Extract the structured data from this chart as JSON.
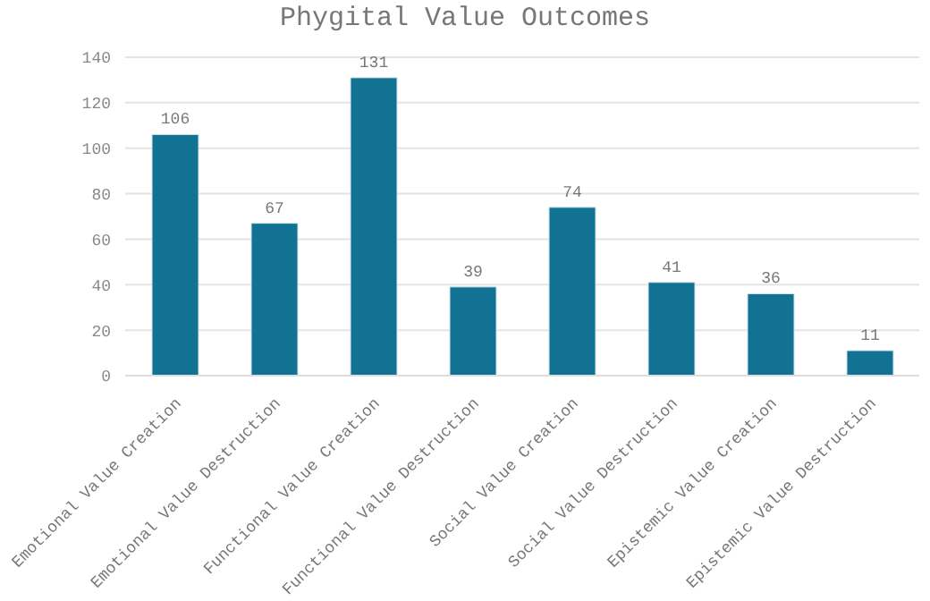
{
  "chart_data": {
    "type": "bar",
    "title": "Phygital Value Outcomes",
    "categories": [
      "Emotional Value Creation",
      "Emotional Value Destruction",
      "Functional Value Creation",
      "Functional Value Destruction",
      "Social Value Creation",
      "Social Value Destruction",
      "Epistemic Value Creation",
      "Epistemic Value Destruction"
    ],
    "values": [
      106,
      67,
      131,
      39,
      74,
      41,
      36,
      11
    ],
    "color": "#127294",
    "ylim": [
      0,
      140
    ],
    "yticks": [
      0,
      20,
      40,
      60,
      80,
      100,
      120,
      140
    ],
    "grid": "y",
    "data_labels": true
  }
}
